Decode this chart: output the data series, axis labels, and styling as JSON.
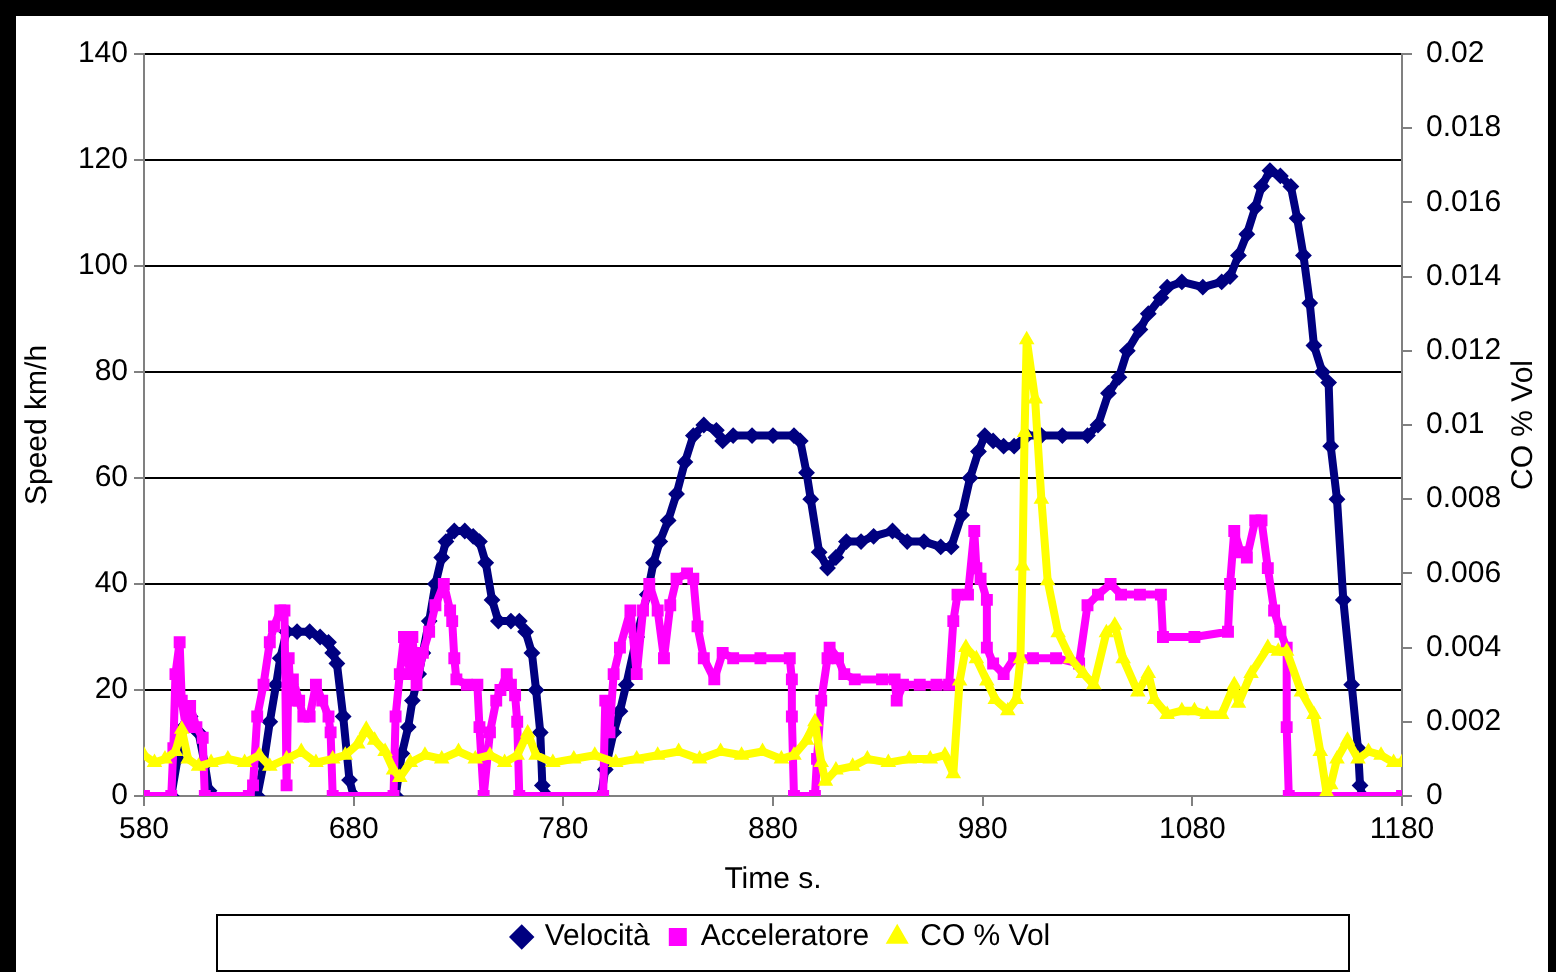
{
  "chart_data": {
    "type": "line",
    "xlabel": "Time s.",
    "ylabel": "Speed km/h",
    "y2label": "CO % Vol",
    "xlim": [
      580,
      1180
    ],
    "xticks": [
      580,
      680,
      780,
      880,
      980,
      1080,
      1180
    ],
    "ylim": [
      0,
      140
    ],
    "yticks": [
      0,
      20,
      40,
      60,
      80,
      100,
      120,
      140
    ],
    "y2lim": [
      0,
      0.02
    ],
    "y2ticks": [
      0,
      0.002,
      0.004,
      0.006,
      0.008,
      0.01,
      0.012,
      0.014,
      0.016,
      0.018,
      0.02
    ],
    "grid": "y",
    "legend": "bottom",
    "series": [
      {
        "name": "Velocità",
        "color": "#000080",
        "marker": "diamond",
        "x": [
          593,
          596,
          599,
          602,
          606,
          609,
          611,
          612,
          620,
          634,
          637,
          640,
          643,
          645,
          648,
          653,
          659,
          664,
          668,
          670,
          672,
          675,
          678,
          680,
          690,
          700,
          703,
          706,
          708,
          711,
          713,
          716,
          719,
          722,
          724,
          728,
          733,
          737,
          740,
          743,
          746,
          749,
          755,
          759,
          762,
          765,
          767,
          769,
          770,
          772,
          785,
          798,
          800,
          804,
          807,
          810,
          815,
          820,
          823,
          826,
          830,
          834,
          838,
          842,
          847,
          853,
          856,
          861,
          870,
          880,
          890,
          893,
          896,
          898,
          902,
          906,
          910,
          915,
          922,
          928,
          937,
          944,
          952,
          960,
          965,
          970,
          974,
          978,
          981,
          985,
          990,
          995,
          1001,
          1008,
          1018,
          1030,
          1035,
          1040,
          1045,
          1049,
          1055,
          1059,
          1065,
          1068,
          1075,
          1085,
          1094,
          1098,
          1102,
          1106,
          1110,
          1113,
          1117,
          1122,
          1127,
          1130,
          1133,
          1136,
          1138,
          1142,
          1145,
          1146,
          1149,
          1152,
          1156,
          1159,
          1160,
          1161
        ],
        "values": [
          0,
          7,
          13,
          15,
          12,
          6,
          1,
          0,
          null,
          0,
          6,
          14,
          21,
          26,
          31,
          31,
          31,
          30,
          29,
          27,
          25,
          15,
          3,
          0,
          null,
          0,
          8,
          13,
          18,
          23,
          27,
          33,
          40,
          45,
          48,
          50,
          50,
          49,
          48,
          44,
          37,
          33,
          33,
          33,
          31,
          27,
          20,
          12,
          2,
          0,
          null,
          0,
          5,
          12,
          16,
          21,
          30,
          38,
          44,
          48,
          52,
          57,
          63,
          68,
          70,
          69,
          67,
          68,
          68,
          68,
          68,
          67,
          61,
          56,
          46,
          43,
          45,
          48,
          48,
          49,
          50,
          48,
          48,
          47,
          47,
          53,
          60,
          65,
          68,
          67,
          66,
          66,
          68,
          68,
          68,
          68,
          70,
          76,
          79,
          84,
          88,
          91,
          94,
          96,
          97,
          96,
          97,
          98,
          102,
          106,
          111,
          115,
          118,
          117,
          115,
          109,
          102,
          93,
          85,
          80,
          78,
          66,
          56,
          37,
          21,
          9,
          2,
          0
        ]
      },
      {
        "name": "Acceleratore",
        "color": "#ff00ff",
        "marker": "square",
        "x": [
          580,
          593,
          594,
          595,
          597,
          598,
          600,
          602,
          605,
          608,
          609,
          630,
          632,
          634,
          637,
          640,
          642,
          645,
          647,
          648,
          649,
          650,
          651,
          654,
          656,
          659,
          662,
          665,
          668,
          669,
          670,
          699,
          700,
          702,
          704,
          707,
          708,
          710,
          713,
          716,
          719,
          723,
          726,
          727,
          728,
          729,
          734,
          739,
          740,
          742,
          745,
          748,
          750,
          753,
          755,
          757,
          758,
          759,
          799,
          800,
          802,
          804,
          807,
          812,
          815,
          818,
          821,
          825,
          828,
          831,
          834,
          839,
          842,
          844,
          847,
          852,
          856,
          861,
          874,
          888,
          889,
          889,
          890,
          900,
          901,
          903,
          906,
          907,
          911,
          914,
          919,
          932,
          938,
          939,
          942,
          950,
          958,
          964,
          966,
          968,
          973,
          976,
          977,
          979,
          982,
          982,
          985,
          990,
          995,
          1004,
          1015,
          1026,
          1030,
          1035,
          1041,
          1046,
          1055,
          1065,
          1066,
          1081,
          1097,
          1098,
          1100,
          1103,
          1106,
          1110,
          1113,
          1116,
          1119,
          1122,
          1125,
          1125,
          1126,
          1180
        ],
        "values": [
          0,
          0,
          9,
          23,
          29,
          18,
          13,
          17,
          13,
          11,
          0,
          0,
          2,
          15,
          21,
          29,
          32,
          35,
          35,
          2,
          26,
          18,
          22,
          18,
          15,
          15,
          21,
          18,
          15,
          12,
          0,
          0,
          15,
          23,
          30,
          23,
          30,
          21,
          27,
          31,
          36,
          40,
          35,
          33,
          26,
          22,
          21,
          21,
          13,
          0,
          12,
          18,
          20,
          23,
          21,
          19,
          14,
          0,
          0,
          18,
          12,
          23,
          28,
          35,
          23,
          35,
          40,
          35,
          26,
          36,
          41,
          42,
          41,
          32,
          26,
          22,
          27,
          26,
          26,
          26,
          22,
          15,
          0,
          0,
          7,
          18,
          26,
          28,
          26,
          23,
          22,
          22,
          22,
          18,
          21,
          21,
          21,
          21,
          33,
          38,
          38,
          50,
          43,
          41,
          37,
          28,
          25,
          23,
          26,
          26,
          26,
          25,
          36,
          38,
          40,
          38,
          38,
          38,
          30,
          30,
          31,
          40,
          50,
          46,
          45,
          52,
          52,
          43,
          35,
          31,
          28,
          13,
          0,
          0
        ]
      },
      {
        "name": "CO % Vol",
        "color": "#ffff00",
        "marker": "triangle",
        "axis": "y2",
        "x": [
          580,
          585,
          590,
          595,
          598,
          601,
          606,
          612,
          620,
          628,
          635,
          640,
          648,
          655,
          662,
          670,
          676,
          682,
          686,
          690,
          695,
          699,
          702,
          707,
          714,
          722,
          730,
          738,
          745,
          752,
          758,
          763,
          767,
          775,
          785,
          795,
          805,
          815,
          825,
          835,
          845,
          855,
          865,
          875,
          884,
          890,
          896,
          900,
          903,
          905,
          910,
          918,
          925,
          935,
          945,
          955,
          962,
          966,
          969,
          972,
          977,
          982,
          986,
          992,
          996,
          998,
          999,
          1000,
          1001,
          1005,
          1008,
          1011,
          1016,
          1022,
          1028,
          1033,
          1039,
          1043,
          1047,
          1054,
          1059,
          1062,
          1068,
          1075,
          1081,
          1087,
          1094,
          1100,
          1102,
          1108,
          1116,
          1121,
          1125,
          1132,
          1138,
          1141,
          1144,
          1146,
          1149,
          1154,
          1159,
          1164,
          1170,
          1176,
          1180
        ],
        "values": [
          0.0011,
          0.0009,
          0.001,
          0.0012,
          0.0018,
          0.001,
          0.0008,
          0.0009,
          0.001,
          0.0009,
          0.0011,
          0.0008,
          0.001,
          0.0012,
          0.0009,
          0.001,
          0.0011,
          0.0014,
          0.0018,
          0.0015,
          0.0012,
          0.0007,
          0.0005,
          0.0009,
          0.0011,
          0.001,
          0.0012,
          0.001,
          0.0011,
          0.0009,
          0.0011,
          0.0017,
          0.0011,
          0.0009,
          0.001,
          0.0011,
          0.0009,
          0.001,
          0.0011,
          0.0012,
          0.001,
          0.0012,
          0.0011,
          0.0012,
          0.001,
          0.0011,
          0.0015,
          0.002,
          0.0009,
          0.0004,
          0.0007,
          0.0008,
          0.001,
          0.0009,
          0.001,
          0.001,
          0.0011,
          0.0006,
          0.0031,
          0.004,
          0.0037,
          0.0031,
          0.0026,
          0.0023,
          0.0026,
          0.0037,
          0.0062,
          0.0098,
          0.0123,
          0.0107,
          0.008,
          0.0058,
          0.0044,
          0.0037,
          0.0033,
          0.003,
          0.0044,
          0.0046,
          0.0037,
          0.0028,
          0.0033,
          0.0026,
          0.0022,
          0.0023,
          0.0023,
          0.0022,
          0.0022,
          0.003,
          0.0025,
          0.0033,
          0.004,
          0.0039,
          0.0039,
          0.0028,
          0.0022,
          0.0012,
          0.0001,
          0.0003,
          0.001,
          0.0015,
          0.001,
          0.0012,
          0.0011,
          0.0009,
          0.0009
        ]
      }
    ]
  }
}
